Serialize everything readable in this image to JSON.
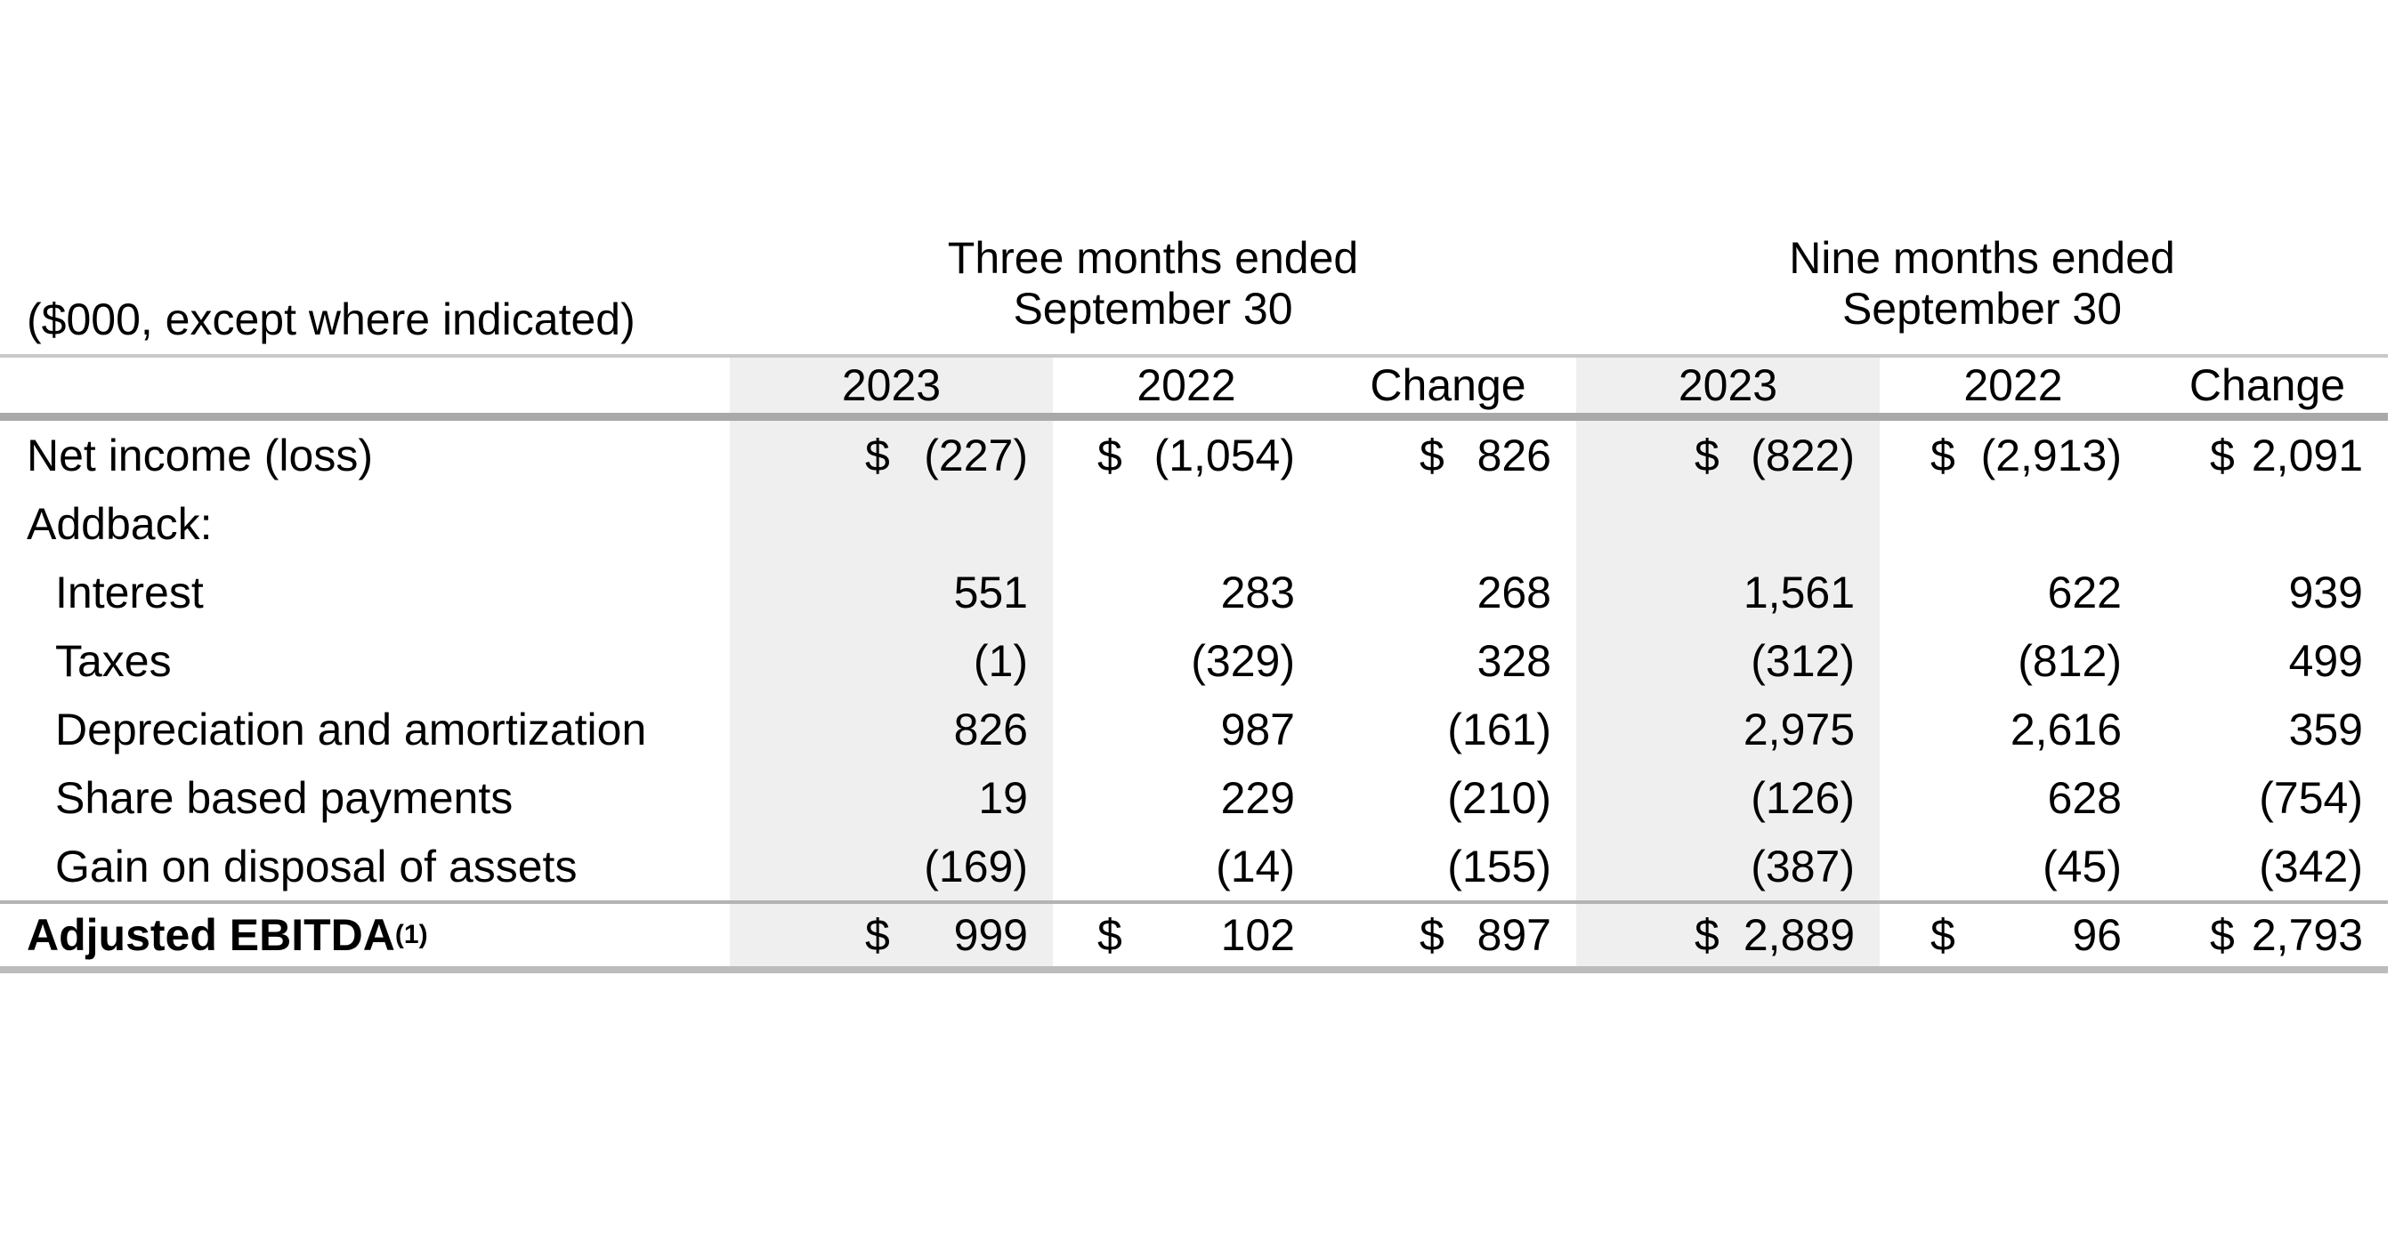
{
  "table": {
    "unit_label": "($000, except where indicated)",
    "currency_symbol": "$",
    "col_groups": [
      {
        "line1": "Three months ended",
        "line2": "September 30"
      },
      {
        "line1": "Nine months ended",
        "line2": "September 30"
      }
    ],
    "columns": [
      "2023",
      "2022",
      "Change",
      "2023",
      "2022",
      "Change"
    ],
    "rows": [
      {
        "label": "Net income (loss)",
        "values": [
          "(227)",
          "(1,054)",
          "826",
          "(822)",
          "(2,913)",
          "2,091"
        ]
      },
      {
        "label": "Addback:",
        "values": [
          "",
          "",
          "",
          "",
          "",
          ""
        ]
      },
      {
        "label": "Interest",
        "values": [
          "551",
          "283",
          "268",
          "1,561",
          "622",
          "939"
        ]
      },
      {
        "label": "Taxes",
        "values": [
          "(1)",
          "(329)",
          "328",
          "(312)",
          "(812)",
          "499"
        ]
      },
      {
        "label": "Depreciation and amortization",
        "values": [
          "826",
          "987",
          "(161)",
          "2,975",
          "2,616",
          "359"
        ]
      },
      {
        "label": "Share based payments",
        "values": [
          "19",
          "229",
          "(210)",
          "(126)",
          "628",
          "(754)"
        ]
      },
      {
        "label": "Gain on disposal of assets",
        "values": [
          "(169)",
          "(14)",
          "(155)",
          "(387)",
          "(45)",
          "(342)"
        ]
      }
    ],
    "total_row": {
      "label": "Adjusted EBITDA",
      "footnote_marker": "(1)",
      "values": [
        "999",
        "102",
        "897",
        "2,889",
        "96",
        "2,793"
      ]
    },
    "colors": {
      "column_shading": "#f0efef",
      "rule_light": "#c8c8c8",
      "rule_medium": "#a9a9a9",
      "text": "#000000"
    }
  }
}
